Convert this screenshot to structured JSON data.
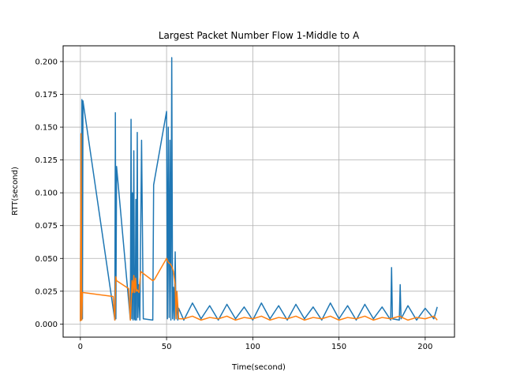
{
  "chart_data": {
    "type": "line",
    "title": "Largest Packet Number Flow 1-Middle to A",
    "xlabel": "Time(second)",
    "ylabel": "RTT(second)",
    "xlim": [
      -10,
      217
    ],
    "ylim": [
      -0.01,
      0.212
    ],
    "x_ticks": [
      0,
      50,
      100,
      150,
      200
    ],
    "y_ticks": [
      0.0,
      0.025,
      0.05,
      0.075,
      0.1,
      0.125,
      0.15,
      0.175,
      0.2
    ],
    "x_tick_labels": [
      "0",
      "50",
      "100",
      "150",
      "200"
    ],
    "y_tick_labels": [
      "0.000",
      "0.025",
      "0.050",
      "0.075",
      "0.100",
      "0.125",
      "0.150",
      "0.175",
      "0.200"
    ],
    "grid": true,
    "series": [
      {
        "color": "#1f77b4",
        "x": [
          0,
          0.3,
          0.6,
          0.9,
          1.2,
          1.5,
          20,
          20.3,
          20.6,
          21,
          29,
          29.4,
          29.8,
          30.2,
          30.6,
          31,
          31.4,
          31.8,
          32.2,
          32.6,
          33,
          33.4,
          33.8,
          34.5,
          35.5,
          36.5,
          42,
          42.5,
          50,
          50.5,
          51,
          51.5,
          52,
          52.5,
          53,
          53.5,
          54,
          54.5,
          55,
          55.5,
          56,
          56.5,
          57,
          60,
          65,
          70,
          75,
          80,
          85,
          90,
          95,
          100,
          105,
          110,
          115,
          120,
          125,
          130,
          135,
          140,
          145,
          150,
          155,
          160,
          165,
          170,
          175,
          180,
          180.5,
          181,
          185,
          185.5,
          186,
          190,
          195,
          200,
          205,
          207
        ],
        "y": [
          0.003,
          0.145,
          0.003,
          0.171,
          0.004,
          0.17,
          0.003,
          0.161,
          0.004,
          0.12,
          0.003,
          0.156,
          0.004,
          0.1,
          0.003,
          0.132,
          0.004,
          0.003,
          0.095,
          0.003,
          0.146,
          0.005,
          0.03,
          0.003,
          0.14,
          0.004,
          0.003,
          0.106,
          0.162,
          0.004,
          0.15,
          0.005,
          0.14,
          0.003,
          0.203,
          0.004,
          0.028,
          0.003,
          0.055,
          0.004,
          0.02,
          0.003,
          0.012,
          0.003,
          0.016,
          0.004,
          0.014,
          0.003,
          0.015,
          0.004,
          0.013,
          0.003,
          0.016,
          0.004,
          0.014,
          0.003,
          0.015,
          0.004,
          0.013,
          0.003,
          0.016,
          0.004,
          0.014,
          0.003,
          0.015,
          0.004,
          0.013,
          0.003,
          0.043,
          0.004,
          0.003,
          0.03,
          0.004,
          0.014,
          0.003,
          0.012,
          0.004,
          0.013
        ]
      },
      {
        "color": "#ff7f0e",
        "x": [
          0,
          0.4,
          0.8,
          1.2,
          1.6,
          19,
          20,
          20.5,
          21,
          28,
          29,
          30,
          30.5,
          31,
          31.5,
          32,
          32.5,
          33,
          34,
          35,
          42,
          43,
          50,
          51,
          52,
          53,
          54,
          55,
          55.5,
          56,
          57,
          60,
          65,
          70,
          75,
          80,
          85,
          90,
          95,
          100,
          105,
          110,
          115,
          120,
          125,
          130,
          135,
          140,
          145,
          150,
          155,
          160,
          165,
          170,
          175,
          180,
          185,
          190,
          195,
          200,
          205,
          207
        ],
        "y": [
          0.002,
          0.145,
          0.003,
          0.024,
          0.024,
          0.021,
          0.003,
          0.036,
          0.033,
          0.027,
          0.003,
          0.033,
          0.024,
          0.037,
          0.024,
          0.035,
          0.025,
          0.026,
          0.024,
          0.04,
          0.033,
          0.034,
          0.05,
          0.047,
          0.046,
          0.044,
          0.04,
          0.03,
          0.004,
          0.025,
          0.004,
          0.004,
          0.006,
          0.003,
          0.005,
          0.004,
          0.006,
          0.003,
          0.005,
          0.004,
          0.006,
          0.003,
          0.005,
          0.004,
          0.006,
          0.003,
          0.005,
          0.004,
          0.006,
          0.003,
          0.005,
          0.004,
          0.006,
          0.003,
          0.005,
          0.004,
          0.006,
          0.003,
          0.005,
          0.004,
          0.006,
          0.003
        ]
      }
    ]
  }
}
